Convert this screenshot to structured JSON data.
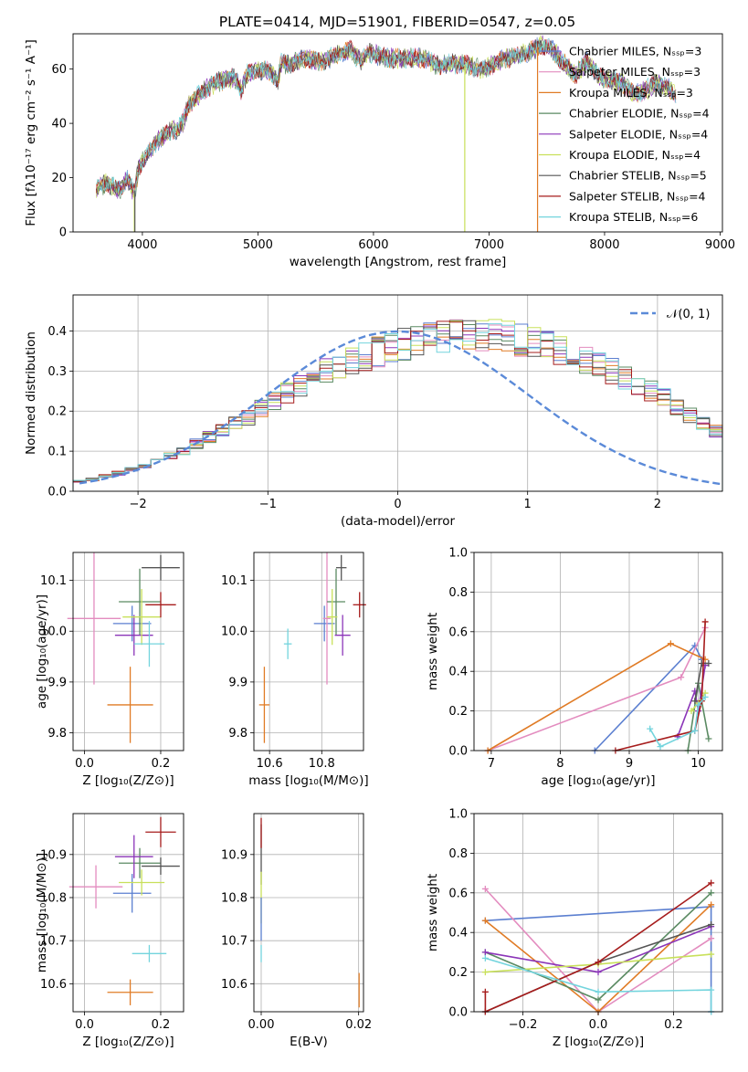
{
  "chart_data": [
    {
      "type": "line",
      "title": "PLATE=0414, MJD=51901, FIBERID=0547, z=0.05",
      "xlabel": "wavelength [Angstrom, rest frame]",
      "ylabel": "Flux [fλ10⁻¹⁷ erg cm⁻² s⁻¹ A⁻¹]",
      "xlim": [
        3400,
        9020
      ],
      "ylim": [
        0,
        73
      ],
      "xticks": [
        "4000",
        "5000",
        "6000",
        "7000",
        "8000",
        "9000"
      ],
      "yticks": [
        "0",
        "20",
        "40",
        "60"
      ],
      "grid": false,
      "legend_position": "right",
      "series": [
        {
          "name": "Chabrier MILES, Nₛₛₚ=3",
          "color": "#5b7fd0"
        },
        {
          "name": "Salpeter MILES, Nₛₛₚ=3",
          "color": "#e38cbf"
        },
        {
          "name": "Kroupa MILES, Nₛₛₚ=3",
          "color": "#e07b25"
        },
        {
          "name": "Chabrier ELODIE, Nₛₛₚ=4",
          "color": "#5a8a62"
        },
        {
          "name": "Salpeter ELODIE, Nₛₛₚ=4",
          "color": "#8b35b8"
        },
        {
          "name": "Kroupa ELODIE, Nₛₛₚ=4",
          "color": "#c8e05a"
        },
        {
          "name": "Chabrier STELIB, Nₛₛₚ=5",
          "color": "#555555"
        },
        {
          "name": "Salpeter STELIB, Nₛₛₚ=4",
          "color": "#a61c1c"
        },
        {
          "name": "Kroupa STELIB, Nₛₛₚ=6",
          "color": "#73d4dd"
        }
      ],
      "spectrum_x": [
        3600,
        3700,
        3800,
        3870,
        3930,
        3970,
        4000,
        4100,
        4200,
        4300,
        4350,
        4400,
        4500,
        4600,
        4700,
        4800,
        4860,
        4900,
        5000,
        5100,
        5175,
        5200,
        5300,
        5400,
        5500,
        5600,
        5700,
        5800,
        5890,
        5950,
        6050,
        6150,
        6250,
        6350,
        6450,
        6563,
        6650,
        6750,
        6850,
        6950,
        7050,
        7150,
        7250,
        7350,
        7450,
        7550,
        7650,
        7750,
        7850,
        7950,
        8050,
        8150,
        8250,
        8350,
        8450,
        8550,
        8620
      ],
      "spectrum_y": [
        16,
        18,
        15,
        20,
        14,
        24,
        26,
        32,
        36,
        38,
        40,
        47,
        51,
        54,
        56,
        57,
        52,
        58,
        60,
        59,
        56,
        62,
        62,
        64,
        63,
        63,
        66,
        67,
        63,
        66,
        65,
        64,
        64,
        64,
        64,
        61,
        62,
        62,
        61,
        60,
        62,
        64,
        65,
        66,
        69,
        67,
        62,
        58,
        63,
        57,
        56,
        55,
        51,
        52,
        55,
        53,
        50
      ]
    },
    {
      "type": "histogram",
      "xlabel": "(data-model)/error",
      "ylabel": "Normed distribution",
      "xlim": [
        -2.5,
        2.5
      ],
      "ylim": [
        0,
        0.49
      ],
      "xticks": [
        "−2",
        "−1",
        "0",
        "1",
        "2"
      ],
      "yticks": [
        "0.0",
        "0.1",
        "0.2",
        "0.3",
        "0.4"
      ],
      "grid": true,
      "legend_position": "top-right",
      "reference_label": "𝒩(0, 1)",
      "bin_width": 0.1,
      "envelope": [
        0.025,
        0.03,
        0.038,
        0.045,
        0.055,
        0.065,
        0.075,
        0.088,
        0.1,
        0.118,
        0.135,
        0.15,
        0.168,
        0.185,
        0.205,
        0.225,
        0.245,
        0.262,
        0.28,
        0.3,
        0.312,
        0.325,
        0.338,
        0.348,
        0.36,
        0.367,
        0.375,
        0.38,
        0.385,
        0.388,
        0.392,
        0.39,
        0.388,
        0.384,
        0.378,
        0.372,
        0.363,
        0.352,
        0.34,
        0.328,
        0.315,
        0.3,
        0.285,
        0.268,
        0.25,
        0.232,
        0.212,
        0.192,
        0.172,
        0.15
      ]
    },
    {
      "type": "scatter",
      "xlabel": "Z [log₁₀(Z/Z⊙)]",
      "ylabel": "age  [log₁₀(age/yr)]",
      "xlim": [
        -0.03,
        0.26
      ],
      "ylim": [
        9.765,
        10.155
      ],
      "xticks": [
        "0.0",
        "0.2"
      ],
      "yticks": [
        "9.8",
        "9.9",
        "10.0",
        "10.1"
      ],
      "grid": true,
      "points": [
        {
          "x": 0.125,
          "y": 10.015,
          "xerr": 0.05,
          "yerr": 0.035,
          "color": "#5b7fd0"
        },
        {
          "x": 0.025,
          "y": 10.025,
          "xerr": 0.07,
          "yerr": 0.13,
          "color": "#e38cbf"
        },
        {
          "x": 0.12,
          "y": 9.855,
          "xerr": 0.06,
          "yerr": 0.075,
          "color": "#e07b25"
        },
        {
          "x": 0.145,
          "y": 10.058,
          "xerr": 0.055,
          "yerr": 0.065,
          "color": "#5a8a62"
        },
        {
          "x": 0.13,
          "y": 9.992,
          "xerr": 0.05,
          "yerr": 0.04,
          "color": "#8b35b8"
        },
        {
          "x": 0.15,
          "y": 10.028,
          "xerr": 0.05,
          "yerr": 0.055,
          "color": "#c8e05a"
        },
        {
          "x": 0.2,
          "y": 10.125,
          "xerr": 0.05,
          "yerr": 0.025,
          "color": "#555555"
        },
        {
          "x": 0.2,
          "y": 10.052,
          "xerr": 0.04,
          "yerr": 0.025,
          "color": "#a61c1c"
        },
        {
          "x": 0.17,
          "y": 9.975,
          "xerr": 0.04,
          "yerr": 0.045,
          "color": "#73d4dd"
        }
      ]
    },
    {
      "type": "scatter",
      "xlabel": "mass [log₁₀(M/M⊙)]",
      "ylabel": "",
      "xlim": [
        10.54,
        10.96
      ],
      "ylim": [
        9.765,
        10.155
      ],
      "xticks": [
        "10.6",
        "10.8"
      ],
      "yticks": [
        "9.8",
        "9.9",
        "10.0",
        "10.1"
      ],
      "grid": true,
      "points": [
        {
          "x": 10.81,
          "y": 10.015,
          "xerr": 0.04,
          "yerr": 0.035,
          "color": "#5b7fd0"
        },
        {
          "x": 10.82,
          "y": 10.025,
          "xerr": 0.015,
          "yerr": 0.13,
          "color": "#e38cbf"
        },
        {
          "x": 10.58,
          "y": 9.855,
          "xerr": 0.02,
          "yerr": 0.075,
          "color": "#e07b25"
        },
        {
          "x": 10.855,
          "y": 10.058,
          "xerr": 0.035,
          "yerr": 0.065,
          "color": "#5a8a62"
        },
        {
          "x": 10.88,
          "y": 9.992,
          "xerr": 0.03,
          "yerr": 0.04,
          "color": "#8b35b8"
        },
        {
          "x": 10.84,
          "y": 10.028,
          "xerr": 0.02,
          "yerr": 0.055,
          "color": "#c8e05a"
        },
        {
          "x": 10.875,
          "y": 10.125,
          "xerr": 0.02,
          "yerr": 0.025,
          "color": "#555555"
        },
        {
          "x": 10.945,
          "y": 10.052,
          "xerr": 0.025,
          "yerr": 0.025,
          "color": "#a61c1c"
        },
        {
          "x": 10.67,
          "y": 9.975,
          "xerr": 0.015,
          "yerr": 0.03,
          "color": "#73d4dd"
        }
      ]
    },
    {
      "type": "line",
      "xlabel": "age  [log₁₀(age/yr)]",
      "ylabel": "mass weight",
      "xlim": [
        6.75,
        10.35
      ],
      "ylim": [
        0,
        1
      ],
      "xticks": [
        "7",
        "8",
        "9",
        "10"
      ],
      "yticks": [
        "0.0",
        "0.2",
        "0.4",
        "0.6",
        "0.8",
        "1.0"
      ],
      "grid": true,
      "series": [
        {
          "color": "#5b7fd0",
          "x": [
            8.5,
            9.95,
            10.05
          ],
          "y": [
            0.0,
            0.53,
            0.46
          ]
        },
        {
          "color": "#e38cbf",
          "x": [
            6.95,
            9.75,
            10.1
          ],
          "y": [
            0.0,
            0.37,
            0.62
          ]
        },
        {
          "color": "#e07b25",
          "x": [
            6.95,
            9.6,
            10.1
          ],
          "y": [
            0.0,
            0.54,
            0.46
          ]
        },
        {
          "color": "#5a8a62",
          "x": [
            9.85,
            10.0,
            10.15
          ],
          "y": [
            0.0,
            0.34,
            0.06
          ]
        },
        {
          "color": "#8b35b8",
          "x": [
            9.7,
            9.95,
            10.0,
            10.1
          ],
          "y": [
            0.07,
            0.3,
            0.2,
            0.43
          ]
        },
        {
          "color": "#c8e05a",
          "x": [
            9.9,
            10.0,
            10.1
          ],
          "y": [
            0.2,
            0.24,
            0.29
          ]
        },
        {
          "color": "#555555",
          "x": [
            9.95,
            10.05,
            10.15
          ],
          "y": [
            0.25,
            0.44,
            0.44
          ]
        },
        {
          "color": "#a61c1c",
          "x": [
            8.8,
            9.95,
            10.05,
            10.1
          ],
          "y": [
            0.0,
            0.1,
            0.25,
            0.65
          ]
        },
        {
          "color": "#73d4dd",
          "x": [
            9.3,
            9.45,
            9.95,
            10.0,
            10.1
          ],
          "y": [
            0.11,
            0.02,
            0.1,
            0.23,
            0.27
          ]
        }
      ]
    },
    {
      "type": "scatter",
      "xlabel": "Z [log₁₀(Z/Z⊙)]",
      "ylabel": "mass [log₁₀(M/M⊙)]",
      "xlim": [
        -0.03,
        0.26
      ],
      "ylim": [
        10.535,
        10.995
      ],
      "xticks": [
        "0.0",
        "0.2"
      ],
      "yticks": [
        "10.6",
        "10.7",
        "10.8",
        "10.9"
      ],
      "grid": true,
      "points": [
        {
          "x": 0.125,
          "y": 10.81,
          "xerr": 0.05,
          "yerr": 0.045,
          "color": "#5b7fd0"
        },
        {
          "x": 0.03,
          "y": 10.825,
          "xerr": 0.07,
          "yerr": 0.05,
          "color": "#e38cbf"
        },
        {
          "x": 0.12,
          "y": 10.58,
          "xerr": 0.06,
          "yerr": 0.03,
          "color": "#e07b25"
        },
        {
          "x": 0.145,
          "y": 10.88,
          "xerr": 0.055,
          "yerr": 0.035,
          "color": "#5a8a62"
        },
        {
          "x": 0.13,
          "y": 10.895,
          "xerr": 0.05,
          "yerr": 0.05,
          "color": "#8b35b8"
        },
        {
          "x": 0.15,
          "y": 10.835,
          "xerr": 0.06,
          "yerr": 0.03,
          "color": "#c8e05a"
        },
        {
          "x": 0.2,
          "y": 10.873,
          "xerr": 0.05,
          "yerr": 0.02,
          "color": "#555555"
        },
        {
          "x": 0.2,
          "y": 10.952,
          "xerr": 0.04,
          "yerr": 0.035,
          "color": "#a61c1c"
        },
        {
          "x": 0.17,
          "y": 10.67,
          "xerr": 0.045,
          "yerr": 0.02,
          "color": "#73d4dd"
        }
      ]
    },
    {
      "type": "scatter",
      "xlabel": "E(B-V)",
      "ylabel": "",
      "xlim": [
        -0.0015,
        0.021
      ],
      "ylim": [
        10.535,
        10.995
      ],
      "xticks": [
        "0.00",
        "0.02"
      ],
      "yticks": [
        "10.6",
        "10.7",
        "10.8",
        "10.9"
      ],
      "grid": true,
      "points": [
        {
          "x": 0.0,
          "y": 10.9,
          "xerr": 0,
          "yerr": 0.07,
          "color": "#555555"
        },
        {
          "x": 0.0,
          "y": 10.95,
          "xerr": 0,
          "yerr": 0.035,
          "color": "#a61c1c"
        },
        {
          "x": 0.0,
          "y": 10.8,
          "xerr": 0,
          "yerr": 0.06,
          "color": "#c8e05a"
        },
        {
          "x": 0.0,
          "y": 10.75,
          "xerr": 0,
          "yerr": 0.05,
          "color": "#5b7fd0"
        },
        {
          "x": 0.0,
          "y": 10.67,
          "xerr": 0,
          "yerr": 0.02,
          "color": "#73d4dd"
        },
        {
          "x": 0.0201,
          "y": 10.585,
          "xerr": 0,
          "yerr": 0.04,
          "color": "#e07b25"
        }
      ]
    },
    {
      "type": "line",
      "xlabel": "Z [log₁₀(Z/Z⊙)]",
      "ylabel": "mass weight",
      "xlim": [
        -0.33,
        0.33
      ],
      "ylim": [
        0,
        1
      ],
      "xticks": [
        "−0.2",
        "0.0",
        "0.2"
      ],
      "yticks": [
        "0.0",
        "0.2",
        "0.4",
        "0.6",
        "0.8",
        "1.0"
      ],
      "grid": true,
      "series": [
        {
          "color": "#5b7fd0",
          "x": [
            -0.3,
            0.3,
            0.3
          ],
          "y": [
            0.46,
            0.53,
            0.0
          ]
        },
        {
          "color": "#e38cbf",
          "x": [
            -0.3,
            0.0,
            0.3
          ],
          "y": [
            0.62,
            0.0,
            0.37
          ]
        },
        {
          "color": "#e07b25",
          "x": [
            -0.3,
            0.0,
            0.3
          ],
          "y": [
            0.46,
            0.0,
            0.54
          ]
        },
        {
          "color": "#5a8a62",
          "x": [
            -0.3,
            0.0,
            0.3
          ],
          "y": [
            0.3,
            0.06,
            0.6
          ]
        },
        {
          "color": "#8b35b8",
          "x": [
            -0.3,
            0.0,
            0.3
          ],
          "y": [
            0.3,
            0.2,
            0.43
          ]
        },
        {
          "color": "#c8e05a",
          "x": [
            -0.3,
            0.0,
            0.3
          ],
          "y": [
            0.2,
            0.24,
            0.29
          ]
        },
        {
          "color": "#555555",
          "x": [
            -0.3,
            0.0,
            0.3
          ],
          "y": [
            0.0,
            0.25,
            0.44
          ]
        },
        {
          "color": "#a61c1c",
          "x": [
            -0.3,
            -0.3,
            0.0,
            0.3
          ],
          "y": [
            0.1,
            0.0,
            0.25,
            0.65
          ]
        },
        {
          "color": "#73d4dd",
          "x": [
            -0.3,
            0.0,
            0.3,
            0.3
          ],
          "y": [
            0.27,
            0.1,
            0.11,
            0.0
          ]
        }
      ]
    }
  ]
}
